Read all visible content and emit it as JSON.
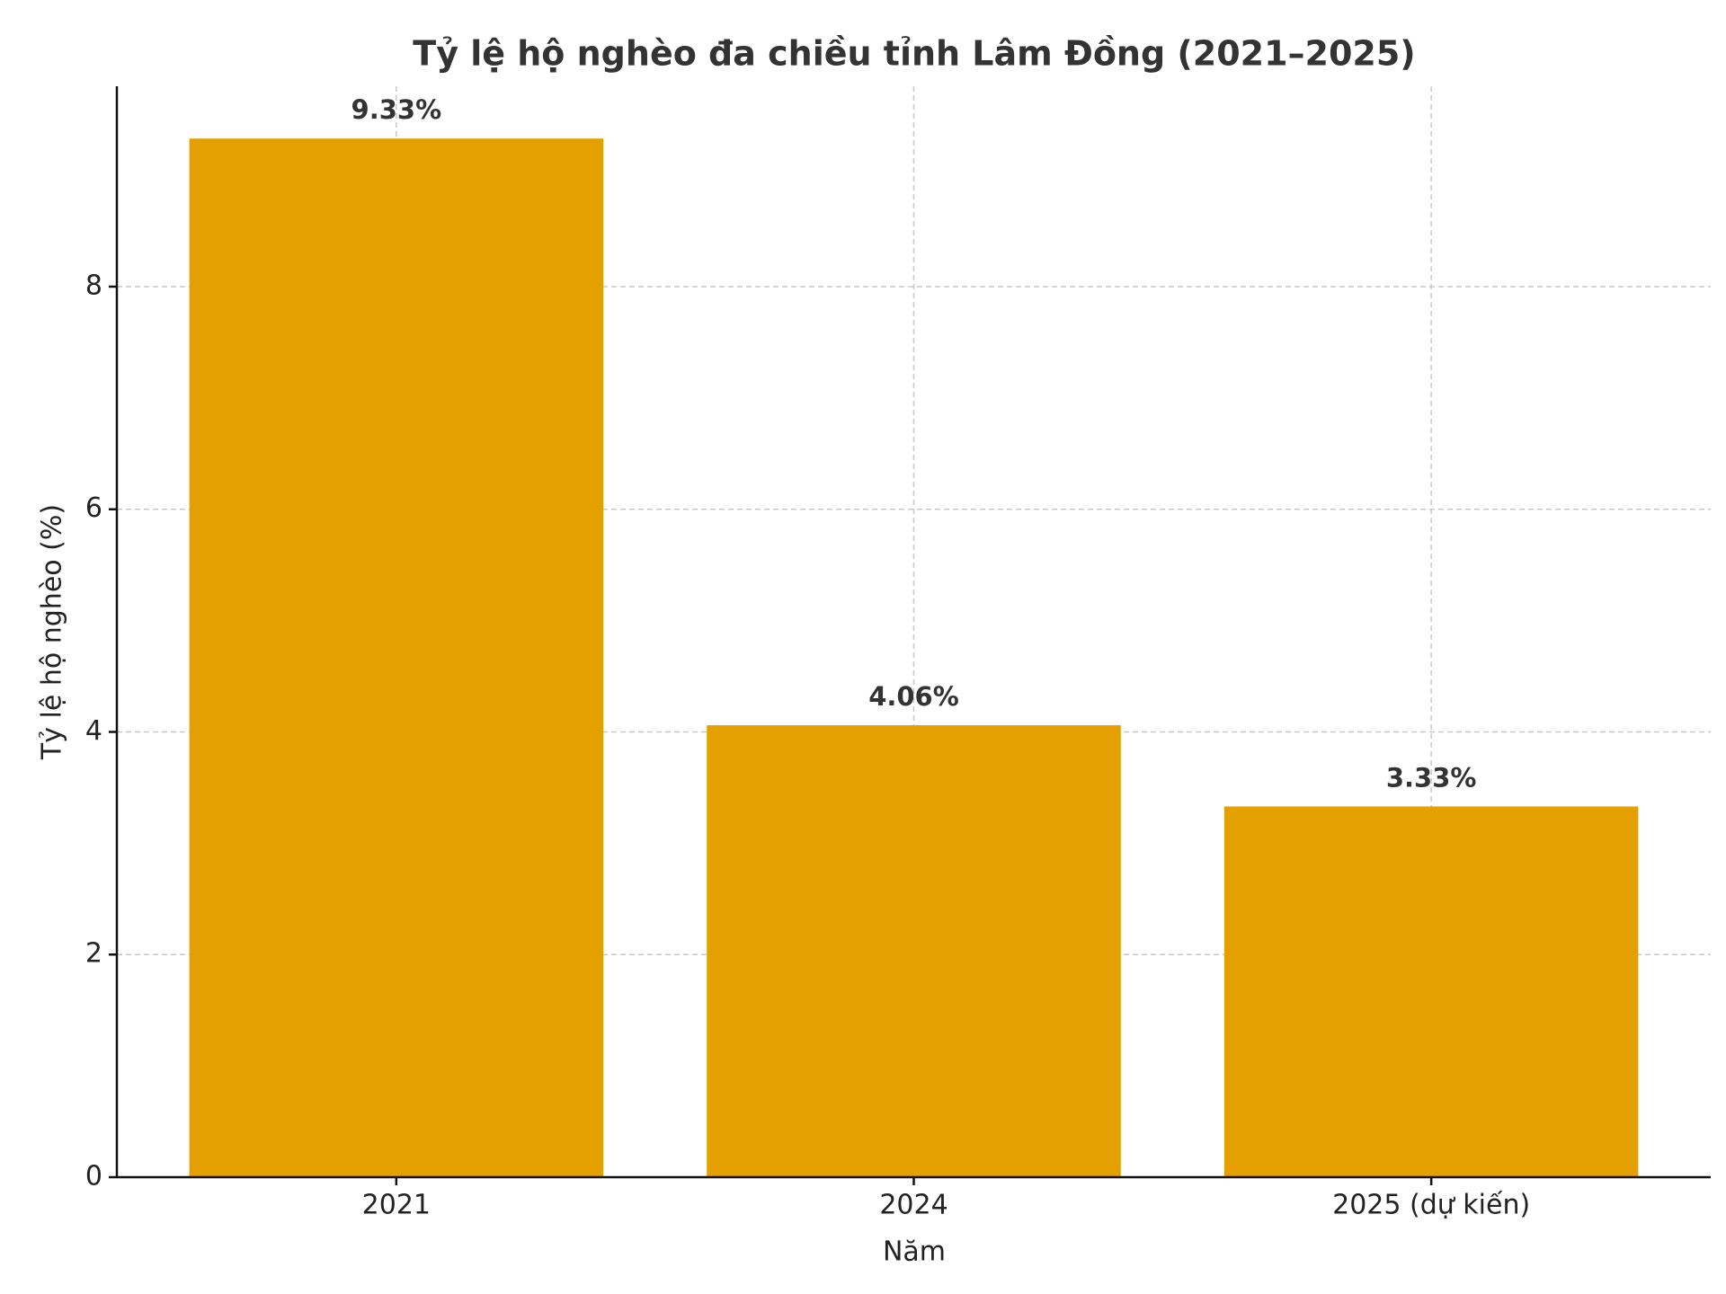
{
  "chart_data": {
    "type": "bar",
    "title": "Tỷ lệ hộ nghèo đa chiều tỉnh Lâm Đồng (2021–2025)",
    "x_label": "Năm",
    "y_label": "Tỷ lệ hộ nghèo (%)",
    "categories": [
      "2021",
      "2024",
      "2025 (dự kiến)"
    ],
    "values": [
      9.33,
      4.06,
      3.33
    ],
    "value_labels": [
      "9.33%",
      "4.06%",
      "3.33%"
    ],
    "color": "#e3a000",
    "ylim": [
      0,
      9.8
    ],
    "yticks": [
      0,
      2,
      4,
      6,
      8
    ],
    "grid": true
  }
}
